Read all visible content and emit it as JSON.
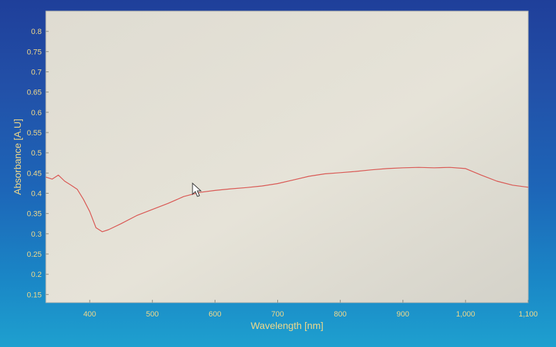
{
  "chart_data": {
    "type": "line",
    "xlabel": "Wavelength [nm]",
    "ylabel": "Absorbance [A.U]",
    "xlim": [
      330,
      1100
    ],
    "ylim": [
      0.13,
      0.85
    ],
    "x_ticks": [
      400,
      500,
      600,
      700,
      800,
      900,
      1000,
      1100
    ],
    "x_tick_labels": [
      "400",
      "500",
      "600",
      "700",
      "800",
      "900",
      "1,000",
      "1,100"
    ],
    "y_ticks": [
      0.15,
      0.2,
      0.25,
      0.3,
      0.35,
      0.4,
      0.45,
      0.5,
      0.55,
      0.6,
      0.65,
      0.7,
      0.75,
      0.8
    ],
    "y_tick_labels": [
      "0.15",
      "0.2",
      "0.25",
      "0.3",
      "0.35",
      "0.4",
      "0.45",
      "0.5",
      "0.55",
      "0.6",
      "0.65",
      "0.7",
      "0.75",
      "0.8"
    ],
    "grid": false,
    "series": [
      {
        "color": "#d9534f",
        "x": [
          330,
          340,
          350,
          360,
          370,
          380,
          390,
          400,
          410,
          420,
          430,
          450,
          475,
          500,
          525,
          550,
          575,
          600,
          625,
          650,
          675,
          700,
          725,
          750,
          775,
          800,
          825,
          850,
          875,
          900,
          925,
          950,
          975,
          1000,
          1025,
          1050,
          1075,
          1100
        ],
        "y": [
          0.44,
          0.435,
          0.445,
          0.43,
          0.42,
          0.41,
          0.385,
          0.355,
          0.315,
          0.305,
          0.31,
          0.325,
          0.345,
          0.36,
          0.375,
          0.392,
          0.402,
          0.407,
          0.411,
          0.414,
          0.418,
          0.424,
          0.433,
          0.442,
          0.448,
          0.451,
          0.454,
          0.458,
          0.461,
          0.463,
          0.464,
          0.463,
          0.464,
          0.461,
          0.445,
          0.43,
          0.42,
          0.415
        ]
      }
    ]
  }
}
